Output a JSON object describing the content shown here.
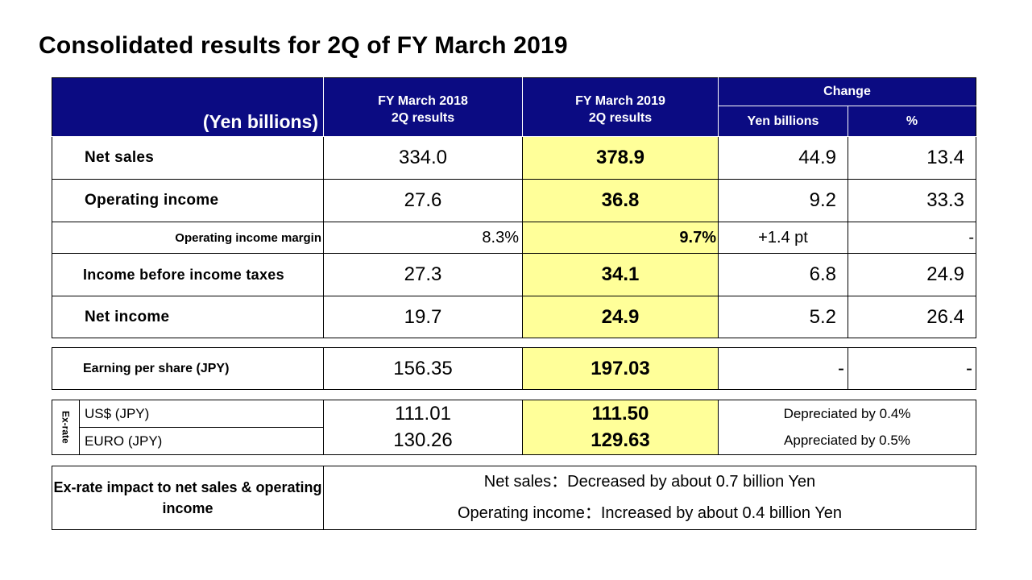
{
  "title": "Consolidated results for 2Q of FY March 2019",
  "header": {
    "unit": "(Yen billions)",
    "col_2018": [
      "FY March 2018",
      "2Q results"
    ],
    "col_2019": [
      "FY March 2019",
      "2Q results"
    ],
    "change": "Change",
    "change_yen": "Yen billions",
    "change_pct": "%"
  },
  "rows": [
    {
      "label": "Net sales",
      "fy2018": "334.0",
      "fy2019": "378.9",
      "yen": "44.9",
      "pct": "13.4"
    },
    {
      "label": "Operating income",
      "fy2018": "27.6",
      "fy2019": "36.8",
      "yen": "9.2",
      "pct": "33.3"
    },
    {
      "label": "Operating income margin",
      "fy2018": "8.3%",
      "fy2019": "9.7%",
      "yen": "+1.4 pt",
      "pct": "-"
    },
    {
      "label": "Income before income taxes",
      "fy2018": "27.3",
      "fy2019": "34.1",
      "yen": "6.8",
      "pct": "24.9"
    },
    {
      "label": "Net income",
      "fy2018": "19.7",
      "fy2019": "24.9",
      "yen": "5.2",
      "pct": "26.4"
    }
  ],
  "eps": {
    "label": "Earning per share (JPY)",
    "fy2018": "156.35",
    "fy2019": "197.03",
    "yen": "-",
    "pct": "-"
  },
  "exrate": {
    "side_label": "Ex-rate",
    "rows": [
      {
        "label": "US$ (JPY)",
        "fy2018": "111.01",
        "fy2019": "111.50",
        "note": "Depreciated by 0.4%"
      },
      {
        "label": "EURO (JPY)",
        "fy2018": "130.26",
        "fy2019": "129.63",
        "note": "Appreciated by 0.5%"
      }
    ]
  },
  "impact": {
    "label": "Ex-rate impact to net sales & operating income",
    "lines": [
      "Net sales：Decreased by about 0.7 billion Yen",
      "Operating income：Increased by about 0.4 billion Yen"
    ]
  },
  "colors": {
    "header_bg": "#0b0b82",
    "highlight": "#ffff99"
  }
}
